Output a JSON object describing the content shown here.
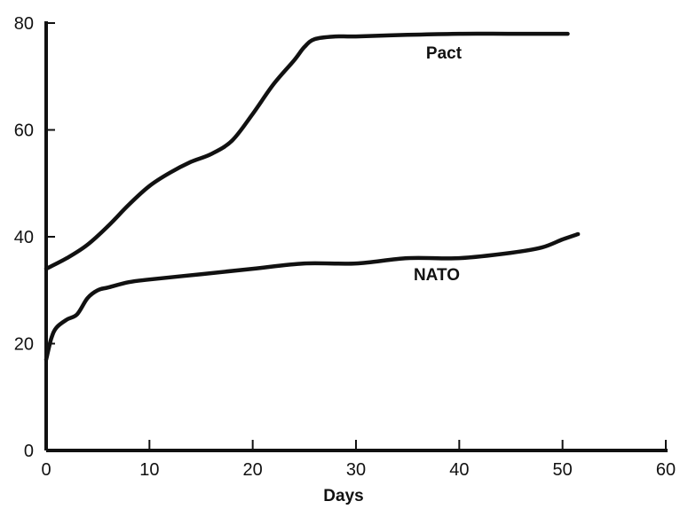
{
  "chart_data": {
    "type": "line",
    "title": "",
    "xlabel": "Days",
    "ylabel": "",
    "xlim": [
      0,
      60
    ],
    "ylim": [
      0,
      80
    ],
    "x_ticks": [
      "0",
      "10",
      "20",
      "30",
      "40",
      "50",
      "60"
    ],
    "y_ticks": [
      "0",
      "20",
      "40",
      "60",
      "80"
    ],
    "grid": false,
    "legend": "inline labels",
    "series": [
      {
        "name": "Pact",
        "color": "#111111",
        "points": [
          [
            0,
            34
          ],
          [
            2,
            36
          ],
          [
            4,
            38.5
          ],
          [
            6,
            42
          ],
          [
            8,
            46
          ],
          [
            10,
            49.5
          ],
          [
            12,
            52
          ],
          [
            14,
            54
          ],
          [
            16,
            55.5
          ],
          [
            18,
            58
          ],
          [
            20,
            63
          ],
          [
            22,
            68.5
          ],
          [
            24,
            73
          ],
          [
            25,
            75.5
          ],
          [
            26,
            77
          ],
          [
            28,
            77.5
          ],
          [
            30,
            77.5
          ],
          [
            35,
            77.8
          ],
          [
            40,
            78
          ],
          [
            45,
            78
          ],
          [
            50.5,
            78
          ]
        ]
      },
      {
        "name": "NATO",
        "color": "#111111",
        "points": [
          [
            0,
            17
          ],
          [
            0.5,
            21
          ],
          [
            1,
            23
          ],
          [
            2,
            24.5
          ],
          [
            3,
            25.5
          ],
          [
            4,
            28.5
          ],
          [
            5,
            30
          ],
          [
            6,
            30.5
          ],
          [
            8,
            31.5
          ],
          [
            10,
            32
          ],
          [
            15,
            33
          ],
          [
            20,
            34
          ],
          [
            25,
            35
          ],
          [
            30,
            35
          ],
          [
            35,
            36
          ],
          [
            40,
            36
          ],
          [
            45,
            37
          ],
          [
            48,
            38
          ],
          [
            50,
            39.5
          ],
          [
            51.5,
            40.5
          ]
        ]
      }
    ]
  }
}
